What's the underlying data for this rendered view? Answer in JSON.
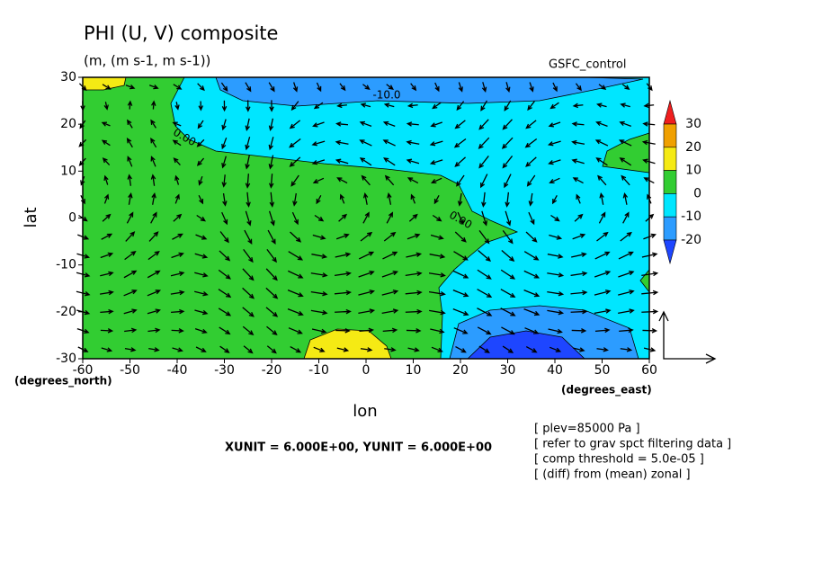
{
  "chart_data": {
    "type": "contour",
    "title": "PHI (U, V) composite",
    "subtitle": "(m, (m s-1, m s-1))",
    "label": "GSFC_control",
    "xlabel": "lon",
    "ylabel": "lat",
    "xunit_label": "(degrees_east)",
    "yunit_label": "(degrees_north)",
    "xlim": [
      -60,
      60
    ],
    "ylim": [
      -30,
      30
    ],
    "xticks": [
      -60,
      -50,
      -40,
      -30,
      -20,
      -10,
      0,
      10,
      20,
      30,
      40,
      50,
      60
    ],
    "yticks": [
      -30,
      -20,
      -10,
      0,
      10,
      20,
      30
    ],
    "colorbar": {
      "levels": [
        30,
        20,
        10,
        0,
        -10,
        -20
      ],
      "colors": [
        "#f01e1e",
        "#f0a000",
        "#f5ea14",
        "#32cd32",
        "#00e6ff",
        "#2c9cff",
        "#1e46ff"
      ]
    },
    "contour_labels": [
      "-10.0",
      "0.00",
      "0.00"
    ],
    "footnote": "XUNIT = 6.000E+00, YUNIT = 6.000E+00",
    "notes": [
      "[ plev=85000 Pa ]",
      "[ refer to grav spct filtering data ]",
      "[ comp threshold = 5.0e-05 ]",
      "[ (diff) from (mean) zonal ]"
    ]
  }
}
